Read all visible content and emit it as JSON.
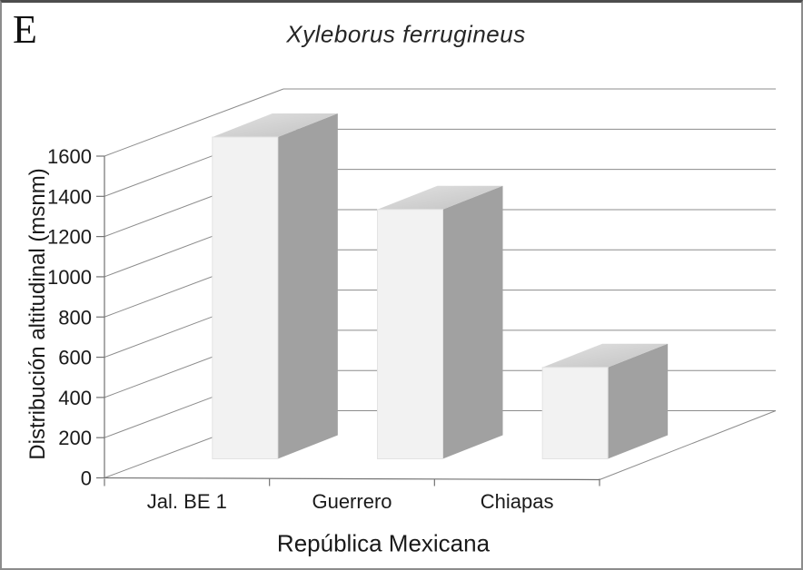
{
  "figure": {
    "panel_label": "E"
  },
  "chart_data": {
    "type": "bar",
    "projection": "3d",
    "title": "Xyleborus ferrugineus",
    "title_style": "italic",
    "categories": [
      "Jal. BE 1",
      "Guerrero",
      "Chiapas"
    ],
    "values": [
      1600,
      1240,
      455
    ],
    "xlabel": "República Mexicana",
    "ylabel": "Distribución altitudinal (msnm)",
    "ylim": [
      0,
      1600
    ],
    "yticks": [
      0,
      200,
      400,
      600,
      800,
      1000,
      1200,
      1400,
      1600
    ],
    "grid": true,
    "legend": false,
    "colors": {
      "bar_front": "#f2f2f2",
      "bar_top_light": "#e2e2e2",
      "bar_top_dark": "#c2c2c2",
      "bar_side": "#a1a1a1",
      "gridline": "#8c8c8c",
      "axis": "#737373",
      "text": "#1a1a1a",
      "background": "#ffffff"
    }
  }
}
